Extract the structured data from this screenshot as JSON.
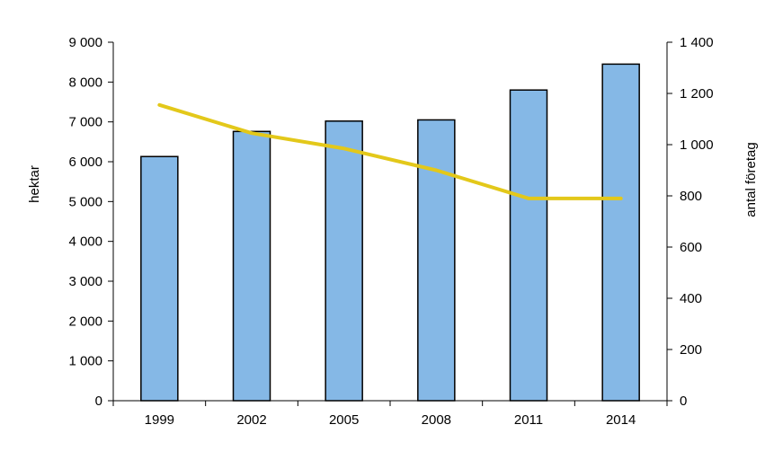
{
  "chart_data": {
    "type": "bar",
    "categories": [
      "1999",
      "2002",
      "2005",
      "2008",
      "2011",
      "2014"
    ],
    "series": [
      {
        "type": "bar",
        "axis": "left",
        "values": [
          6130,
          6760,
          7020,
          7050,
          7800,
          8450
        ],
        "color": "#85b8e6"
      },
      {
        "type": "line",
        "axis": "right",
        "values": [
          1155,
          1045,
          985,
          900,
          790,
          790
        ],
        "color": "#e3c81a"
      }
    ],
    "ylabel": "hektar",
    "ylim": [
      0,
      9000
    ],
    "yticks": [
      "0",
      "1 000",
      "2 000",
      "3 000",
      "4 000",
      "5 000",
      "6 000",
      "7 000",
      "8 000",
      "9 000"
    ],
    "y2label": "antal företag",
    "y2lim": [
      0,
      1400
    ],
    "y2ticks": [
      "0",
      "200",
      "400",
      "600",
      "800",
      "1 000",
      "1 200",
      "1 400"
    ],
    "grid": false,
    "legend": "none"
  }
}
